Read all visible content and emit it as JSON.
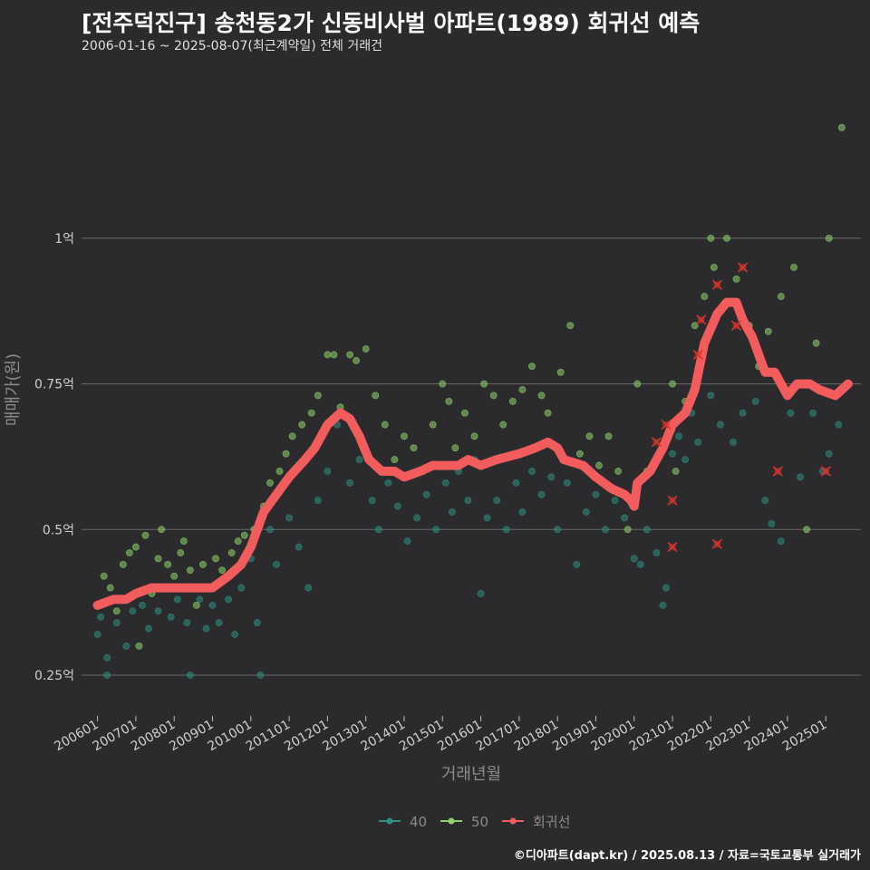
{
  "header": {
    "title": "[전주덕진구] 송천동2가 신동비사벌 아파트(1989) 회귀선 예측",
    "subtitle": "2006-01-16 ~ 2025-08-07(최근계약일) 전체 거래건"
  },
  "caption": "©디아파트(dapt.kr) / 2025.08.13 / 자료=국토교통부 실거래가",
  "colors": {
    "background": "#2b2a2d",
    "grid": "#6b6b6b",
    "series_40": "#2f8f83",
    "series_50": "#8ed36b",
    "regression": "#f25c5c",
    "outlier": "#d9352b"
  },
  "chart_data": {
    "type": "scatter",
    "xlabel": "거래년월",
    "ylabel": "매매가(원)",
    "x_range": [
      "2005-08",
      "2025-12"
    ],
    "ylim": [
      0.18,
      1.3
    ],
    "y_ticks": [
      {
        "value": 0.25,
        "label": "0.25억"
      },
      {
        "value": 0.5,
        "label": "0.5억"
      },
      {
        "value": 0.75,
        "label": "0.75억"
      },
      {
        "value": 1.0,
        "label": "1억"
      }
    ],
    "x_ticks": [
      "200601",
      "200701",
      "200801",
      "200901",
      "201001",
      "201101",
      "201201",
      "201301",
      "201401",
      "201501",
      "201601",
      "201701",
      "201801",
      "201901",
      "202001",
      "202101",
      "202201",
      "202301",
      "202401",
      "202501"
    ],
    "grid": true,
    "legend_position": "bottom",
    "legend": [
      {
        "key": "40",
        "label": "40"
      },
      {
        "key": "50",
        "label": "50"
      },
      {
        "key": "regression",
        "label": "회귀선"
      }
    ],
    "regression_line": [
      [
        "2006-01",
        0.37
      ],
      [
        "2006-06",
        0.38
      ],
      [
        "2006-10",
        0.38
      ],
      [
        "2007-01",
        0.39
      ],
      [
        "2007-06",
        0.4
      ],
      [
        "2008-01",
        0.4
      ],
      [
        "2008-06",
        0.4
      ],
      [
        "2009-01",
        0.4
      ],
      [
        "2009-06",
        0.42
      ],
      [
        "2009-10",
        0.44
      ],
      [
        "2010-01",
        0.47
      ],
      [
        "2010-05",
        0.53
      ],
      [
        "2010-09",
        0.56
      ],
      [
        "2011-01",
        0.59
      ],
      [
        "2011-06",
        0.62
      ],
      [
        "2011-09",
        0.64
      ],
      [
        "2012-01",
        0.68
      ],
      [
        "2012-05",
        0.7
      ],
      [
        "2012-08",
        0.69
      ],
      [
        "2012-11",
        0.66
      ],
      [
        "2013-02",
        0.62
      ],
      [
        "2013-06",
        0.6
      ],
      [
        "2013-10",
        0.6
      ],
      [
        "2014-01",
        0.59
      ],
      [
        "2014-06",
        0.6
      ],
      [
        "2014-10",
        0.61
      ],
      [
        "2015-01",
        0.61
      ],
      [
        "2015-06",
        0.61
      ],
      [
        "2015-09",
        0.62
      ],
      [
        "2016-01",
        0.61
      ],
      [
        "2016-06",
        0.62
      ],
      [
        "2017-01",
        0.63
      ],
      [
        "2017-06",
        0.64
      ],
      [
        "2017-10",
        0.65
      ],
      [
        "2018-01",
        0.64
      ],
      [
        "2018-03",
        0.62
      ],
      [
        "2018-09",
        0.61
      ],
      [
        "2019-01",
        0.59
      ],
      [
        "2019-06",
        0.57
      ],
      [
        "2019-10",
        0.56
      ],
      [
        "2019-12",
        0.55
      ],
      [
        "2020-01",
        0.54
      ],
      [
        "2020-02",
        0.58
      ],
      [
        "2020-06",
        0.6
      ],
      [
        "2020-10",
        0.64
      ],
      [
        "2021-01",
        0.68
      ],
      [
        "2021-05",
        0.7
      ],
      [
        "2021-08",
        0.74
      ],
      [
        "2021-11",
        0.82
      ],
      [
        "2022-03",
        0.87
      ],
      [
        "2022-06",
        0.89
      ],
      [
        "2022-09",
        0.89
      ],
      [
        "2022-11",
        0.86
      ],
      [
        "2023-02",
        0.83
      ],
      [
        "2023-06",
        0.77
      ],
      [
        "2023-09",
        0.77
      ],
      [
        "2024-01",
        0.73
      ],
      [
        "2024-04",
        0.75
      ],
      [
        "2024-08",
        0.75
      ],
      [
        "2024-11",
        0.74
      ],
      [
        "2025-04",
        0.73
      ],
      [
        "2025-08",
        0.75
      ]
    ],
    "outliers": [
      [
        "2020-08",
        0.65
      ],
      [
        "2020-11",
        0.68
      ],
      [
        "2021-01",
        0.55
      ],
      [
        "2021-01",
        0.47
      ],
      [
        "2021-09",
        0.8
      ],
      [
        "2021-10",
        0.86
      ],
      [
        "2022-03",
        0.92
      ],
      [
        "2022-03",
        0.475
      ],
      [
        "2022-09",
        0.85
      ],
      [
        "2022-11",
        0.95
      ],
      [
        "2023-10",
        0.6
      ],
      [
        "2025-01",
        0.6
      ]
    ],
    "series": [
      {
        "name": "40",
        "points": [
          [
            "2006-01",
            0.32
          ],
          [
            "2006-02",
            0.35
          ],
          [
            "2006-04",
            0.28
          ],
          [
            "2006-04",
            0.25
          ],
          [
            "2006-07",
            0.34
          ],
          [
            "2006-10",
            0.3
          ],
          [
            "2006-12",
            0.36
          ],
          [
            "2007-03",
            0.37
          ],
          [
            "2007-05",
            0.33
          ],
          [
            "2007-08",
            0.36
          ],
          [
            "2007-10",
            0.4
          ],
          [
            "2007-12",
            0.35
          ],
          [
            "2008-02",
            0.38
          ],
          [
            "2008-05",
            0.34
          ],
          [
            "2008-06",
            0.25
          ],
          [
            "2008-09",
            0.38
          ],
          [
            "2008-11",
            0.33
          ],
          [
            "2009-01",
            0.37
          ],
          [
            "2009-03",
            0.34
          ],
          [
            "2009-06",
            0.38
          ],
          [
            "2009-08",
            0.32
          ],
          [
            "2009-10",
            0.4
          ],
          [
            "2010-01",
            0.45
          ],
          [
            "2010-03",
            0.34
          ],
          [
            "2010-04",
            0.25
          ],
          [
            "2010-07",
            0.5
          ],
          [
            "2010-09",
            0.44
          ],
          [
            "2011-01",
            0.52
          ],
          [
            "2011-04",
            0.47
          ],
          [
            "2011-07",
            0.4
          ],
          [
            "2011-10",
            0.55
          ],
          [
            "2012-01",
            0.6
          ],
          [
            "2012-04",
            0.68
          ],
          [
            "2012-08",
            0.58
          ],
          [
            "2012-11",
            0.62
          ],
          [
            "2013-03",
            0.55
          ],
          [
            "2013-05",
            0.5
          ],
          [
            "2013-08",
            0.58
          ],
          [
            "2013-11",
            0.54
          ],
          [
            "2014-02",
            0.48
          ],
          [
            "2014-05",
            0.52
          ],
          [
            "2014-08",
            0.56
          ],
          [
            "2014-11",
            0.5
          ],
          [
            "2015-02",
            0.58
          ],
          [
            "2015-04",
            0.53
          ],
          [
            "2015-06",
            0.6
          ],
          [
            "2015-09",
            0.55
          ],
          [
            "2015-11",
            0.62
          ],
          [
            "2016-01",
            0.39
          ],
          [
            "2016-03",
            0.52
          ],
          [
            "2016-06",
            0.55
          ],
          [
            "2016-09",
            0.5
          ],
          [
            "2016-12",
            0.58
          ],
          [
            "2017-02",
            0.53
          ],
          [
            "2017-05",
            0.6
          ],
          [
            "2017-08",
            0.56
          ],
          [
            "2017-11",
            0.59
          ],
          [
            "2018-01",
            0.5
          ],
          [
            "2018-04",
            0.58
          ],
          [
            "2018-07",
            0.44
          ],
          [
            "2018-10",
            0.53
          ],
          [
            "2019-01",
            0.56
          ],
          [
            "2019-04",
            0.5
          ],
          [
            "2019-07",
            0.55
          ],
          [
            "2019-10",
            0.52
          ],
          [
            "2020-01",
            0.45
          ],
          [
            "2020-03",
            0.44
          ],
          [
            "2020-05",
            0.5
          ],
          [
            "2020-08",
            0.46
          ],
          [
            "2020-10",
            0.37
          ],
          [
            "2020-11",
            0.4
          ],
          [
            "2021-01",
            0.63
          ],
          [
            "2021-03",
            0.66
          ],
          [
            "2021-05",
            0.62
          ],
          [
            "2021-07",
            0.7
          ],
          [
            "2021-09",
            0.65
          ],
          [
            "2022-01",
            0.73
          ],
          [
            "2022-04",
            0.68
          ],
          [
            "2022-08",
            0.65
          ],
          [
            "2022-11",
            0.7
          ],
          [
            "2023-03",
            0.72
          ],
          [
            "2023-06",
            0.55
          ],
          [
            "2023-08",
            0.51
          ],
          [
            "2023-11",
            0.48
          ],
          [
            "2024-02",
            0.7
          ],
          [
            "2024-05",
            0.59
          ],
          [
            "2024-09",
            0.7
          ],
          [
            "2024-12",
            0.6
          ],
          [
            "2025-02",
            0.63
          ],
          [
            "2025-05",
            0.68
          ]
        ]
      },
      {
        "name": "50",
        "points": [
          [
            "2006-03",
            0.42
          ],
          [
            "2006-05",
            0.4
          ],
          [
            "2006-07",
            0.36
          ],
          [
            "2006-09",
            0.44
          ],
          [
            "2006-11",
            0.46
          ],
          [
            "2007-01",
            0.47
          ],
          [
            "2007-02",
            0.3
          ],
          [
            "2007-04",
            0.49
          ],
          [
            "2007-06",
            0.39
          ],
          [
            "2007-08",
            0.45
          ],
          [
            "2007-09",
            0.5
          ],
          [
            "2007-11",
            0.44
          ],
          [
            "2008-01",
            0.42
          ],
          [
            "2008-03",
            0.46
          ],
          [
            "2008-04",
            0.48
          ],
          [
            "2008-06",
            0.43
          ],
          [
            "2008-08",
            0.37
          ],
          [
            "2008-10",
            0.44
          ],
          [
            "2008-12",
            0.4
          ],
          [
            "2009-02",
            0.45
          ],
          [
            "2009-04",
            0.43
          ],
          [
            "2009-07",
            0.46
          ],
          [
            "2009-09",
            0.48
          ],
          [
            "2009-11",
            0.49
          ],
          [
            "2010-02",
            0.5
          ],
          [
            "2010-05",
            0.54
          ],
          [
            "2010-07",
            0.58
          ],
          [
            "2010-10",
            0.6
          ],
          [
            "2010-12",
            0.63
          ],
          [
            "2011-02",
            0.66
          ],
          [
            "2011-05",
            0.68
          ],
          [
            "2011-08",
            0.7
          ],
          [
            "2011-10",
            0.73
          ],
          [
            "2012-01",
            0.8
          ],
          [
            "2012-03",
            0.8
          ],
          [
            "2012-05",
            0.71
          ],
          [
            "2012-08",
            0.8
          ],
          [
            "2012-10",
            0.79
          ],
          [
            "2013-01",
            0.81
          ],
          [
            "2013-04",
            0.73
          ],
          [
            "2013-07",
            0.68
          ],
          [
            "2013-10",
            0.62
          ],
          [
            "2014-01",
            0.66
          ],
          [
            "2014-04",
            0.64
          ],
          [
            "2014-07",
            0.6
          ],
          [
            "2014-10",
            0.68
          ],
          [
            "2015-01",
            0.75
          ],
          [
            "2015-03",
            0.72
          ],
          [
            "2015-05",
            0.64
          ],
          [
            "2015-08",
            0.7
          ],
          [
            "2015-11",
            0.66
          ],
          [
            "2016-02",
            0.75
          ],
          [
            "2016-05",
            0.73
          ],
          [
            "2016-08",
            0.68
          ],
          [
            "2016-11",
            0.72
          ],
          [
            "2017-02",
            0.74
          ],
          [
            "2017-05",
            0.78
          ],
          [
            "2017-08",
            0.73
          ],
          [
            "2017-10",
            0.7
          ],
          [
            "2018-02",
            0.77
          ],
          [
            "2018-05",
            0.85
          ],
          [
            "2018-08",
            0.63
          ],
          [
            "2018-11",
            0.66
          ],
          [
            "2019-02",
            0.61
          ],
          [
            "2019-05",
            0.66
          ],
          [
            "2019-08",
            0.6
          ],
          [
            "2019-11",
            0.5
          ],
          [
            "2020-02",
            0.75
          ],
          [
            "2020-05",
            0.6
          ],
          [
            "2020-08",
            0.62
          ],
          [
            "2021-01",
            0.75
          ],
          [
            "2021-02",
            0.6
          ],
          [
            "2021-05",
            0.72
          ],
          [
            "2021-08",
            0.85
          ],
          [
            "2021-11",
            0.9
          ],
          [
            "2022-01",
            1.0
          ],
          [
            "2022-02",
            0.95
          ],
          [
            "2022-06",
            1.0
          ],
          [
            "2022-09",
            0.93
          ],
          [
            "2023-01",
            0.85
          ],
          [
            "2023-04",
            0.78
          ],
          [
            "2023-07",
            0.84
          ],
          [
            "2023-11",
            0.9
          ],
          [
            "2024-03",
            0.95
          ],
          [
            "2024-07",
            0.5
          ],
          [
            "2024-10",
            0.82
          ],
          [
            "2025-02",
            1.0
          ],
          [
            "2025-06",
            1.19
          ]
        ]
      }
    ]
  }
}
